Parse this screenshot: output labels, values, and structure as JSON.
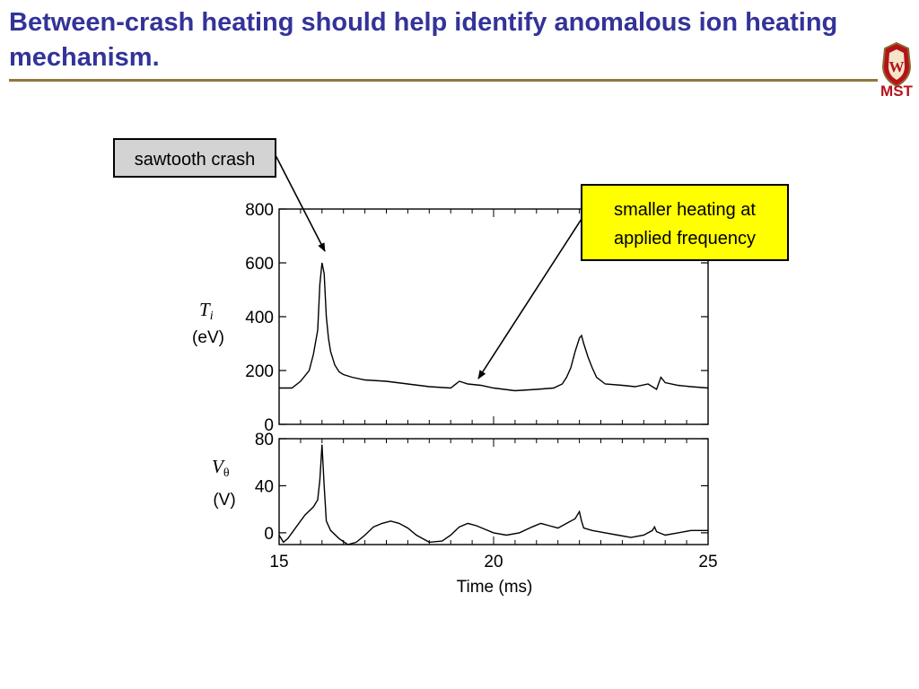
{
  "slide": {
    "title": "Between-crash heating should help identify anomalous ion heating mechanism.",
    "logo_text": "MST",
    "logo_letter": "W"
  },
  "annotations": {
    "crash_label": "sawtooth crash",
    "heating_label_line1": "smaller heating at",
    "heating_label_line2": "applied frequency",
    "crash_box_fill": "#d3d3d3",
    "heating_box_fill": "#ffff00"
  },
  "chart_data": [
    {
      "type": "line",
      "ylabel_symbol": "T",
      "ylabel_sub": "i",
      "ylabel_unit": "(eV)",
      "xlim": [
        15,
        25
      ],
      "ylim": [
        0,
        800
      ],
      "yticks": [
        0,
        200,
        400,
        600,
        800
      ],
      "yticks_labels": [
        "0",
        "200",
        "400",
        "600",
        "800"
      ],
      "series": [
        {
          "x": [
            15.0,
            15.3,
            15.5,
            15.7,
            15.8,
            15.9,
            15.95,
            16.0,
            16.05,
            16.1,
            16.15,
            16.2,
            16.3,
            16.4,
            16.5,
            16.7,
            17.0,
            17.5,
            18.0,
            18.5,
            19.0,
            19.2,
            19.4,
            19.7,
            20.0,
            20.5,
            21.0,
            21.4,
            21.6,
            21.7,
            21.8,
            21.9,
            22.0,
            22.05,
            22.1,
            22.2,
            22.3,
            22.4,
            22.6,
            23.0,
            23.3,
            23.6,
            23.8,
            23.9,
            24.0,
            24.3,
            24.6,
            25.0
          ],
          "y": [
            135,
            135,
            160,
            200,
            260,
            350,
            520,
            600,
            560,
            400,
            320,
            270,
            220,
            195,
            185,
            175,
            165,
            160,
            150,
            140,
            135,
            160,
            150,
            145,
            135,
            125,
            130,
            135,
            150,
            175,
            210,
            270,
            320,
            330,
            300,
            250,
            210,
            175,
            150,
            145,
            140,
            150,
            130,
            175,
            155,
            145,
            140,
            135
          ]
        }
      ]
    },
    {
      "type": "line",
      "ylabel_symbol": "V",
      "ylabel_sub": "θ",
      "ylabel_unit": "(V)",
      "xlim": [
        15,
        25
      ],
      "ylim": [
        -10,
        80
      ],
      "yticks": [
        0,
        40,
        80
      ],
      "yticks_labels": [
        "0",
        "40",
        "80"
      ],
      "xticks": [
        15,
        20,
        25
      ],
      "xticks_labels": [
        "15",
        "20",
        "25"
      ],
      "xlabel": "Time (ms)",
      "series": [
        {
          "x": [
            15.0,
            15.1,
            15.2,
            15.4,
            15.6,
            15.8,
            15.9,
            15.95,
            16.0,
            16.05,
            16.1,
            16.2,
            16.4,
            16.6,
            16.8,
            17.0,
            17.2,
            17.4,
            17.6,
            17.8,
            18.0,
            18.2,
            18.5,
            18.8,
            19.0,
            19.2,
            19.4,
            19.6,
            19.8,
            20.0,
            20.3,
            20.6,
            20.9,
            21.1,
            21.3,
            21.5,
            21.7,
            21.9,
            22.0,
            22.05,
            22.1,
            22.3,
            22.6,
            22.9,
            23.2,
            23.5,
            23.7,
            23.75,
            23.8,
            24.0,
            24.3,
            24.6,
            25.0
          ],
          "y": [
            -2,
            -8,
            -5,
            5,
            15,
            22,
            28,
            45,
            75,
            40,
            10,
            2,
            -5,
            -10,
            -8,
            -2,
            5,
            8,
            10,
            8,
            4,
            -2,
            -8,
            -7,
            -2,
            5,
            8,
            6,
            3,
            0,
            -2,
            0,
            5,
            8,
            6,
            4,
            8,
            12,
            18,
            10,
            4,
            2,
            0,
            -2,
            -4,
            -2,
            2,
            5,
            1,
            -2,
            0,
            2,
            2
          ]
        }
      ]
    }
  ]
}
